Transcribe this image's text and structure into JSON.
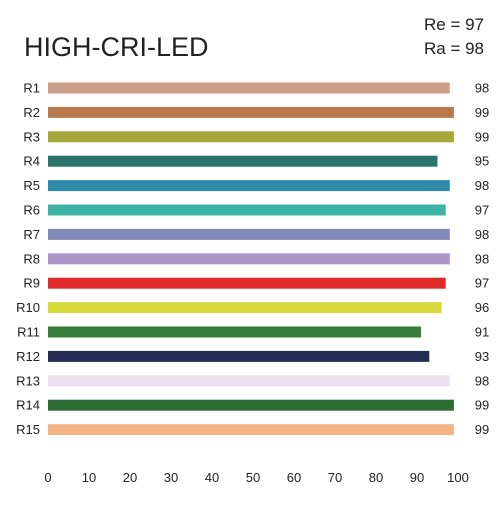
{
  "chart_data": {
    "type": "bar",
    "orientation": "horizontal",
    "title": "HIGH-CRI-LED",
    "summary": [
      "Re = 97",
      "Ra = 98"
    ],
    "categories": [
      "R1",
      "R2",
      "R3",
      "R4",
      "R5",
      "R6",
      "R7",
      "R8",
      "R9",
      "R10",
      "R11",
      "R12",
      "R13",
      "R14",
      "R15"
    ],
    "values": [
      98,
      99,
      99,
      95,
      98,
      97,
      98,
      98,
      97,
      96,
      91,
      93,
      98,
      99,
      99
    ],
    "bar_colors": [
      "#cd9e8a",
      "#b8784c",
      "#a7a63a",
      "#2b736c",
      "#2e88a8",
      "#3cb4a5",
      "#8489bb",
      "#ab94c6",
      "#e02a29",
      "#d7da3a",
      "#367c3a",
      "#242d55",
      "#ece1f0",
      "#2b6d33",
      "#f3b588"
    ],
    "xlim": [
      0,
      100
    ],
    "xticks": [
      "0",
      "10",
      "20",
      "30",
      "40",
      "50",
      "60",
      "70",
      "80",
      "90",
      "100"
    ],
    "grid": false,
    "legend": false
  }
}
